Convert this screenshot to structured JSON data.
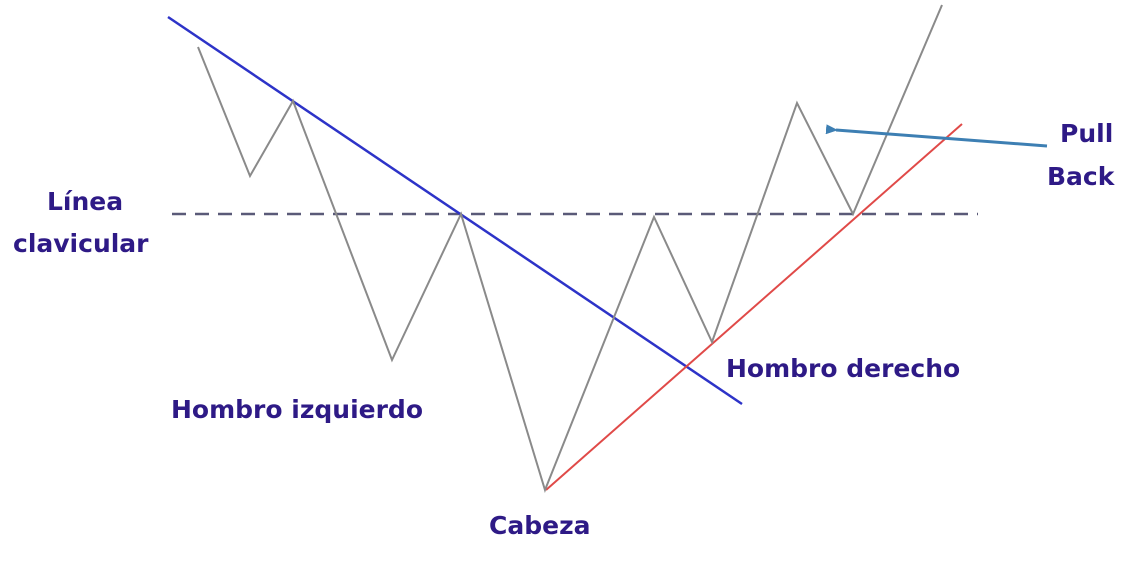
{
  "labels": {
    "neckline_line1": "Línea",
    "neckline_line2": "clavicular",
    "left_shoulder": "Hombro izquierdo",
    "head": "Cabeza",
    "right_shoulder": "Hombro derecho",
    "pullback_line1": "Pull",
    "pullback_line2": "Back"
  },
  "colors": {
    "price_line": "#8a8a8a",
    "down_trendline": "#2d33c8",
    "up_trendline": "#e04a48",
    "neckline": "#5a5a78",
    "arrow": "#3d7fb3",
    "label_text": "#2e1a86"
  }
}
